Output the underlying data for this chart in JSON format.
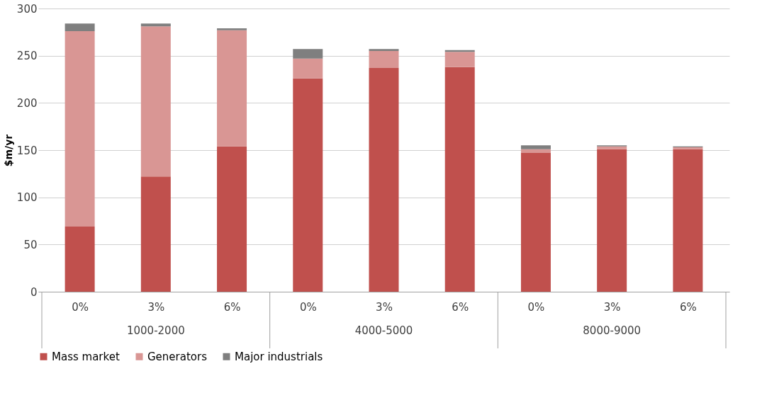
{
  "chart_data": {
    "type": "bar",
    "ylabel": "$m/yr",
    "stacked": true,
    "categories": [
      "0%",
      "3%",
      "6%",
      "0%",
      "3%",
      "6%",
      "0%",
      "3%",
      "6%"
    ],
    "annotations": [
      "1000-2000",
      "4000-5000",
      "8000-9000"
    ],
    "series": [
      {
        "name": "Mass market",
        "color": "#c0504d",
        "values": [
          69,
          122,
          154,
          226,
          237,
          238,
          147,
          151,
          151
        ]
      },
      {
        "name": "Generators",
        "color": "#d99694",
        "values": [
          207,
          159,
          123,
          21,
          18,
          16,
          4,
          3,
          2
        ]
      },
      {
        "name": "Major industrials",
        "color": "#7f7f7f",
        "values": [
          8,
          3,
          2,
          10,
          2,
          2,
          4,
          1,
          1
        ]
      }
    ],
    "ylim": [
      0,
      300
    ],
    "yticks": [
      0,
      50,
      100,
      150,
      200,
      250,
      300
    ],
    "grid": "y",
    "legend": "bottom"
  }
}
